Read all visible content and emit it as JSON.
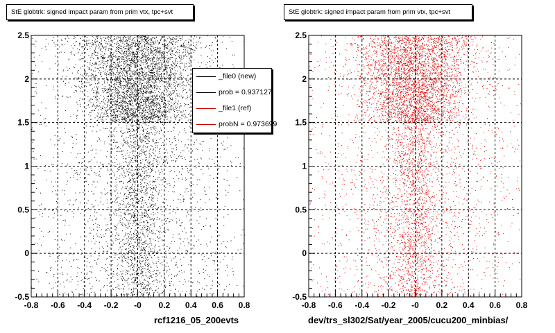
{
  "chart_data": [
    {
      "type": "scatter",
      "title": "StE globtrk: signed impact param from prim vtx, tpc+svt",
      "xlabel": "rcf1216_05_200evts",
      "ylabel": "",
      "xlim": [
        -0.8,
        0.8
      ],
      "ylim": [
        -0.5,
        2.5
      ],
      "xticks": [
        "-0.8",
        "-0.6",
        "-0.4",
        "-0.2",
        "-0",
        "0.2",
        "0.4",
        "0.6",
        "0.8"
      ],
      "yticks": [
        "-0.5",
        "0",
        "0.5",
        "1",
        "1.5",
        "2",
        "2.5"
      ],
      "grid": true,
      "marker_color": "#000000",
      "distribution": {
        "x_center": 0.0,
        "dense_region_y": [
          1.5,
          2.5
        ],
        "sparse_region_y": [
          -0.5,
          1.5
        ]
      },
      "legend": {
        "placement": "top-right",
        "entries": [
          {
            "label": "_file0 (new)",
            "color": "#000000"
          },
          {
            "label": "prob = 0.937127",
            "color": "#000000"
          },
          {
            "label": "_file1 (ref)",
            "color": "#cc0000"
          },
          {
            "label": "probN = 0.973699",
            "color": "#cc0000"
          }
        ]
      }
    },
    {
      "type": "scatter",
      "title": "StE globtrk: signed impact param from prim vtx, tpc+svt",
      "xlabel": "dev/trs_sl302/Sat/year_2005/cucu200_minbias/",
      "ylabel": "",
      "xlim": [
        -0.8,
        0.8
      ],
      "ylim": [
        -0.5,
        2.5
      ],
      "xticks": [
        "-0.8",
        "-0.6",
        "-0.4",
        "-0.2",
        "-0",
        "0.2",
        "0.4",
        "0.6",
        "0.8"
      ],
      "yticks": [
        "-0.5",
        "0",
        "0.5",
        "1",
        "1.5",
        "2",
        "2.5"
      ],
      "grid": true,
      "marker_color": "#dd0000",
      "distribution": {
        "x_center": 0.0,
        "dense_region_y": [
          1.5,
          2.5
        ],
        "sparse_region_y": [
          -0.5,
          1.5
        ]
      }
    }
  ]
}
